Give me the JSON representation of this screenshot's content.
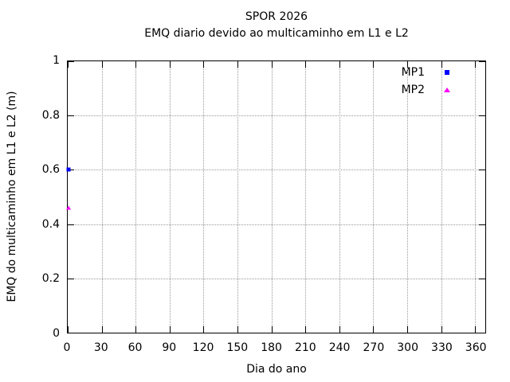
{
  "titles": {
    "title": "SPOR 2026",
    "subtitle": "EMQ diario devido ao multicaminho em L1 e L2"
  },
  "colors": {
    "background": "#ffffff",
    "axis": "#000000",
    "grid": "#9a9a9a",
    "mp1": "#0000ff",
    "mp2": "#ff00ff"
  },
  "chart_data": {
    "type": "scatter",
    "title": "SPOR 2026",
    "subtitle": "EMQ diario devido ao multicaminho em L1 e L2",
    "xlabel": "Dia do ano",
    "ylabel": "EMQ do multicaminho em L1 e L2 (m)",
    "xlim": [
      0,
      369
    ],
    "ylim": [
      0,
      1
    ],
    "xticks": [
      0,
      30,
      60,
      90,
      120,
      150,
      180,
      210,
      240,
      270,
      300,
      330,
      360
    ],
    "xtick_labels": [
      "0",
      "30",
      "60",
      "90",
      "120",
      "150",
      "180",
      "210",
      "240",
      "270",
      "300",
      "330",
      "360"
    ],
    "yticks": [
      0,
      0.2,
      0.4,
      0.6,
      0.8,
      1
    ],
    "ytick_labels": [
      "0",
      "0.2",
      "0.4",
      "0.6",
      "0.8",
      "1"
    ],
    "grid": true,
    "grid_style": "dotted",
    "legend_position": "top-right",
    "series": [
      {
        "name": "MP1",
        "marker": "square",
        "color": "#0000ff",
        "points": [
          {
            "x": 1,
            "y": 0.6
          }
        ]
      },
      {
        "name": "MP2",
        "marker": "triangle",
        "color": "#ff00ff",
        "points": [
          {
            "x": 1,
            "y": 0.46
          }
        ]
      }
    ]
  }
}
